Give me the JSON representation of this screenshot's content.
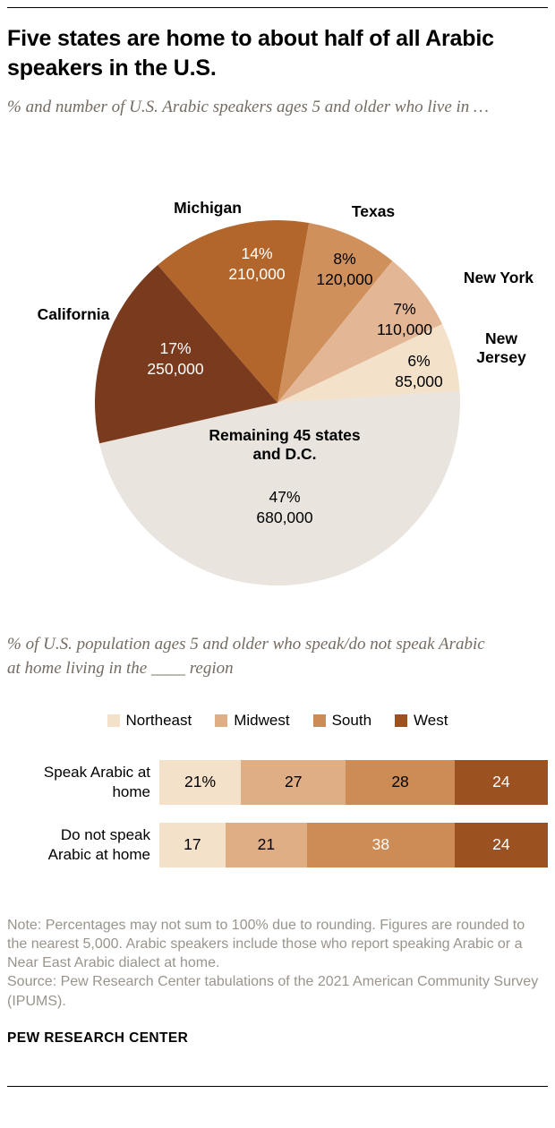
{
  "header": {
    "title": "Five states are home to about half of all Arabic speakers in the U.S.",
    "subtitle": "% and number of U.S. Arabic speakers ages 5 and older who live in …"
  },
  "chart_data": [
    {
      "type": "pie",
      "title": "% and number of U.S. Arabic speakers ages 5 and older who live in …",
      "start_angle_deg_clockwise_from_top": -41,
      "slices": [
        {
          "id": "michigan",
          "name": "Michigan",
          "value": 14,
          "pct_label": "14%",
          "count_label": "210,000",
          "color": "#b2662c",
          "label_color": "#ffffff"
        },
        {
          "id": "texas",
          "name": "Texas",
          "value": 8,
          "pct_label": "8%",
          "count_label": "120,000",
          "color": "#d0905c",
          "label_color": "#000000"
        },
        {
          "id": "new-york",
          "name": "New York",
          "value": 7,
          "pct_label": "7%",
          "count_label": "110,000",
          "color": "#e3b795",
          "label_color": "#000000"
        },
        {
          "id": "new-jersey",
          "name": "New Jersey",
          "value": 6,
          "pct_label": "6%",
          "count_label": "85,000",
          "color": "#f3e1ca",
          "label_color": "#000000"
        },
        {
          "id": "remaining",
          "name": "Remaining 45 states and D.C.",
          "value": 47,
          "pct_label": "47%",
          "count_label": "680,000",
          "color": "#e9e5de",
          "label_color": "#000000"
        },
        {
          "id": "california",
          "name": "California",
          "value": 17,
          "pct_label": "17%",
          "count_label": "250,000",
          "color": "#7a3a1e",
          "label_color": "#ffffff"
        }
      ]
    },
    {
      "type": "bar",
      "stacked": true,
      "orientation": "horizontal",
      "subtitle": "% of U.S. population ages 5 and older who speak/do not speak Arabic at home living in the ____ region",
      "xlim": [
        0,
        100
      ],
      "legend_position": "top-center",
      "regions": [
        {
          "name": "Northeast",
          "color": "#f3e1ca"
        },
        {
          "name": "Midwest",
          "color": "#e0ae85"
        },
        {
          "name": "South",
          "color": "#cd8b56"
        },
        {
          "name": "West",
          "color": "#9c5220"
        }
      ],
      "rows": [
        {
          "label": "Speak Arabic at home",
          "values": [
            21,
            27,
            28,
            24
          ],
          "display": [
            "21%",
            "27",
            "28",
            "24"
          ],
          "value_colors": [
            "#000000",
            "#000000",
            "#000000",
            "#ffffff"
          ]
        },
        {
          "label": "Do not speak Arabic at home",
          "values": [
            17,
            21,
            38,
            24
          ],
          "display": [
            "17",
            "21",
            "38",
            "24"
          ],
          "value_colors": [
            "#000000",
            "#000000",
            "#ffffff",
            "#ffffff"
          ]
        }
      ]
    }
  ],
  "notes": {
    "note": "Note: Percentages may not sum to 100% due to rounding. Figures are rounded to the nearest 5,000. Arabic speakers include those who report speaking Arabic or a Near East Arabic dialect at home.",
    "source": "Source: Pew Research Center tabulations of the 2021 American Community Survey (IPUMS)."
  },
  "footer": {
    "brand": "PEW RESEARCH CENTER"
  }
}
